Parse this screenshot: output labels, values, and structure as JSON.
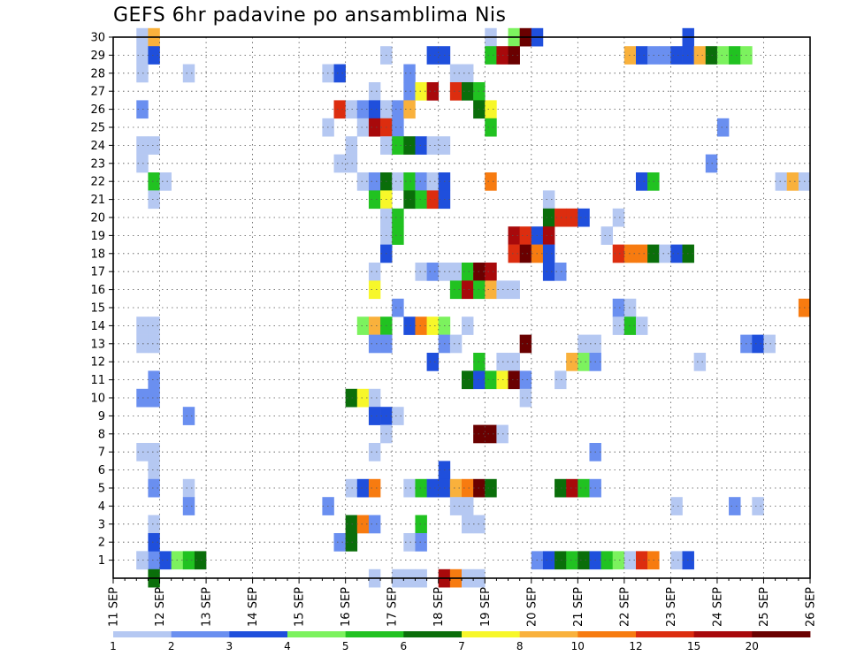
{
  "title": "GEFS 6hr padavine po ansamblima Nis",
  "chart_data": {
    "type": "heatmap",
    "title": "GEFS 6hr padavine po ansamblima Nis",
    "x_axis": {
      "unit": "6-hour step",
      "range": [
        0,
        60
      ],
      "tick_labels": [
        "11 SEP",
        "12 SEP",
        "13 SEP",
        "14 SEP",
        "15 SEP",
        "16 SEP",
        "17 SEP",
        "18 SEP",
        "19 SEP",
        "20 SEP",
        "21 SEP",
        "22 SEP",
        "23 SEP",
        "24 SEP",
        "25 SEP",
        "26 SEP"
      ]
    },
    "y_axis": {
      "range": [
        0,
        30
      ],
      "tick_labels": [
        "1",
        "2",
        "3",
        "4",
        "5",
        "6",
        "7",
        "8",
        "9",
        "10",
        "11",
        "12",
        "13",
        "14",
        "15",
        "16",
        "17",
        "18",
        "19",
        "20",
        "21",
        "22",
        "23",
        "24",
        "25",
        "26",
        "27",
        "28",
        "29",
        "30"
      ]
    },
    "grid": true,
    "legend": {
      "placement": "bottom",
      "labels": [
        "1",
        "2",
        "3",
        "4",
        "5",
        "6",
        "7",
        "8",
        "10",
        "12",
        "15",
        "20"
      ],
      "colors": [
        "#b5c8f2",
        "#6a8ff0",
        "#1f4fdc",
        "#7cf25e",
        "#21c221",
        "#0a6e0a",
        "#f7f72a",
        "#f9b13c",
        "#f77b10",
        "#dc2d0f",
        "#a8090b",
        "#6a0000"
      ]
    },
    "cells": [
      [
        1,
        3,
        1
      ],
      [
        1,
        4,
        2
      ],
      [
        1,
        5,
        3
      ],
      [
        1,
        6,
        4
      ],
      [
        1,
        7,
        5
      ],
      [
        1,
        8,
        6
      ],
      [
        30,
        3,
        1
      ],
      [
        30,
        4,
        8
      ],
      [
        30,
        33,
        1
      ],
      [
        30,
        35,
        4
      ],
      [
        30,
        36,
        12
      ],
      [
        30,
        37,
        3
      ],
      [
        30,
        50,
        3
      ],
      [
        29,
        3,
        1
      ],
      [
        29,
        4,
        3
      ],
      [
        29,
        24,
        1
      ],
      [
        29,
        28,
        3
      ],
      [
        29,
        29,
        3
      ],
      [
        29,
        33,
        5
      ],
      [
        29,
        34,
        11
      ],
      [
        29,
        35,
        12
      ],
      [
        29,
        45,
        8
      ],
      [
        29,
        46,
        3
      ],
      [
        29,
        47,
        2
      ],
      [
        29,
        48,
        2
      ],
      [
        29,
        49,
        3
      ],
      [
        29,
        50,
        3
      ],
      [
        29,
        51,
        8
      ],
      [
        29,
        52,
        6
      ],
      [
        29,
        53,
        4
      ],
      [
        29,
        54,
        5
      ],
      [
        29,
        55,
        4
      ],
      [
        28,
        3,
        1
      ],
      [
        28,
        7,
        1
      ],
      [
        28,
        19,
        1
      ],
      [
        28,
        20,
        3
      ],
      [
        28,
        26,
        2
      ],
      [
        28,
        30,
        1
      ],
      [
        28,
        31,
        1
      ],
      [
        27,
        23,
        1
      ],
      [
        27,
        26,
        2
      ],
      [
        27,
        27,
        7
      ],
      [
        27,
        28,
        11
      ],
      [
        27,
        30,
        10
      ],
      [
        27,
        31,
        6
      ],
      [
        27,
        32,
        5
      ],
      [
        26,
        3,
        2
      ],
      [
        26,
        20,
        10
      ],
      [
        26,
        21,
        1
      ],
      [
        26,
        22,
        2
      ],
      [
        26,
        23,
        3
      ],
      [
        26,
        24,
        1
      ],
      [
        26,
        25,
        2
      ],
      [
        26,
        26,
        8
      ],
      [
        26,
        32,
        6
      ],
      [
        26,
        33,
        7
      ],
      [
        25,
        19,
        1
      ],
      [
        25,
        22,
        1
      ],
      [
        25,
        23,
        11
      ],
      [
        25,
        24,
        10
      ],
      [
        25,
        25,
        2
      ],
      [
        25,
        33,
        5
      ],
      [
        25,
        53,
        2
      ],
      [
        24,
        3,
        1
      ],
      [
        24,
        4,
        1
      ],
      [
        24,
        21,
        1
      ],
      [
        24,
        24,
        1
      ],
      [
        24,
        25,
        5
      ],
      [
        24,
        26,
        6
      ],
      [
        24,
        27,
        3
      ],
      [
        24,
        28,
        1
      ],
      [
        24,
        29,
        1
      ],
      [
        23,
        3,
        1
      ],
      [
        23,
        20,
        1
      ],
      [
        23,
        21,
        1
      ],
      [
        23,
        52,
        2
      ],
      [
        22,
        4,
        5
      ],
      [
        22,
        5,
        1
      ],
      [
        22,
        22,
        1
      ],
      [
        22,
        23,
        2
      ],
      [
        22,
        24,
        6
      ],
      [
        22,
        25,
        1
      ],
      [
        22,
        26,
        5
      ],
      [
        22,
        27,
        2
      ],
      [
        22,
        28,
        1
      ],
      [
        22,
        29,
        3
      ],
      [
        22,
        33,
        9
      ],
      [
        22,
        46,
        3
      ],
      [
        22,
        47,
        5
      ],
      [
        22,
        58,
        1
      ],
      [
        22,
        59,
        8
      ],
      [
        22,
        60,
        1
      ],
      [
        21,
        4,
        1
      ],
      [
        21,
        23,
        5
      ],
      [
        21,
        24,
        7
      ],
      [
        21,
        26,
        6
      ],
      [
        21,
        27,
        5
      ],
      [
        21,
        28,
        10
      ],
      [
        21,
        29,
        3
      ],
      [
        21,
        38,
        1
      ],
      [
        20,
        24,
        1
      ],
      [
        20,
        25,
        5
      ],
      [
        20,
        38,
        6
      ],
      [
        20,
        39,
        10
      ],
      [
        20,
        40,
        10
      ],
      [
        20,
        41,
        3
      ],
      [
        20,
        44,
        1
      ],
      [
        19,
        24,
        1
      ],
      [
        19,
        25,
        5
      ],
      [
        19,
        35,
        11
      ],
      [
        19,
        36,
        10
      ],
      [
        19,
        37,
        3
      ],
      [
        19,
        38,
        11
      ],
      [
        19,
        43,
        1
      ],
      [
        18,
        24,
        3
      ],
      [
        18,
        35,
        10
      ],
      [
        18,
        36,
        12
      ],
      [
        18,
        37,
        9
      ],
      [
        18,
        38,
        3
      ],
      [
        18,
        44,
        10
      ],
      [
        18,
        45,
        9
      ],
      [
        18,
        46,
        9
      ],
      [
        18,
        47,
        6
      ],
      [
        18,
        48,
        1
      ],
      [
        18,
        49,
        3
      ],
      [
        18,
        50,
        6
      ],
      [
        17,
        23,
        1
      ],
      [
        17,
        27,
        1
      ],
      [
        17,
        28,
        2
      ],
      [
        17,
        29,
        1
      ],
      [
        17,
        30,
        1
      ],
      [
        17,
        31,
        5
      ],
      [
        17,
        32,
        12
      ],
      [
        17,
        33,
        11
      ],
      [
        17,
        38,
        3
      ],
      [
        17,
        39,
        2
      ],
      [
        16,
        23,
        7
      ],
      [
        16,
        30,
        5
      ],
      [
        16,
        31,
        11
      ],
      [
        16,
        32,
        5
      ],
      [
        16,
        33,
        8
      ],
      [
        16,
        34,
        1
      ],
      [
        16,
        35,
        1
      ],
      [
        15,
        25,
        2
      ],
      [
        15,
        44,
        2
      ],
      [
        15,
        45,
        1
      ],
      [
        15,
        60,
        9
      ],
      [
        14,
        3,
        1
      ],
      [
        14,
        4,
        1
      ],
      [
        14,
        22,
        4
      ],
      [
        14,
        23,
        8
      ],
      [
        14,
        24,
        5
      ],
      [
        14,
        26,
        3
      ],
      [
        14,
        27,
        9
      ],
      [
        14,
        28,
        7
      ],
      [
        14,
        29,
        4
      ],
      [
        14,
        31,
        1
      ],
      [
        14,
        44,
        1
      ],
      [
        14,
        45,
        5
      ],
      [
        14,
        46,
        1
      ],
      [
        13,
        3,
        1
      ],
      [
        13,
        4,
        1
      ],
      [
        13,
        23,
        2
      ],
      [
        13,
        24,
        2
      ],
      [
        13,
        29,
        2
      ],
      [
        13,
        30,
        1
      ],
      [
        13,
        36,
        12
      ],
      [
        13,
        41,
        1
      ],
      [
        13,
        42,
        1
      ],
      [
        13,
        55,
        2
      ],
      [
        13,
        56,
        3
      ],
      [
        13,
        57,
        1
      ],
      [
        12,
        28,
        3
      ],
      [
        12,
        32,
        5
      ],
      [
        12,
        34,
        1
      ],
      [
        12,
        35,
        1
      ],
      [
        12,
        40,
        8
      ],
      [
        12,
        41,
        4
      ],
      [
        12,
        42,
        2
      ],
      [
        12,
        51,
        1
      ],
      [
        11,
        4,
        2
      ],
      [
        11,
        31,
        6
      ],
      [
        11,
        32,
        3
      ],
      [
        11,
        33,
        5
      ],
      [
        11,
        34,
        7
      ],
      [
        11,
        35,
        12
      ],
      [
        11,
        36,
        2
      ],
      [
        11,
        39,
        1
      ],
      [
        10,
        3,
        2
      ],
      [
        10,
        4,
        2
      ],
      [
        10,
        21,
        6
      ],
      [
        10,
        22,
        7
      ],
      [
        10,
        23,
        1
      ],
      [
        10,
        36,
        1
      ],
      [
        9,
        7,
        2
      ],
      [
        9,
        23,
        3
      ],
      [
        9,
        24,
        3
      ],
      [
        9,
        25,
        1
      ],
      [
        8,
        24,
        1
      ],
      [
        8,
        32,
        12
      ],
      [
        8,
        33,
        12
      ],
      [
        8,
        34,
        1
      ],
      [
        7,
        3,
        1
      ],
      [
        7,
        4,
        1
      ],
      [
        7,
        23,
        1
      ],
      [
        7,
        42,
        2
      ],
      [
        6,
        4,
        1
      ],
      [
        6,
        29,
        3
      ],
      [
        5,
        4,
        2
      ],
      [
        5,
        7,
        1
      ],
      [
        5,
        21,
        1
      ],
      [
        5,
        22,
        3
      ],
      [
        5,
        23,
        9
      ],
      [
        5,
        26,
        1
      ],
      [
        5,
        27,
        5
      ],
      [
        5,
        28,
        3
      ],
      [
        5,
        29,
        3
      ],
      [
        5,
        30,
        8
      ],
      [
        5,
        31,
        9
      ],
      [
        5,
        32,
        12
      ],
      [
        5,
        33,
        6
      ],
      [
        5,
        39,
        6
      ],
      [
        5,
        40,
        11
      ],
      [
        5,
        41,
        5
      ],
      [
        5,
        42,
        2
      ],
      [
        4,
        7,
        2
      ],
      [
        4,
        19,
        2
      ],
      [
        4,
        30,
        1
      ],
      [
        4,
        31,
        1
      ],
      [
        4,
        49,
        1
      ],
      [
        4,
        54,
        2
      ],
      [
        4,
        56,
        1
      ],
      [
        3,
        4,
        1
      ],
      [
        3,
        21,
        6
      ],
      [
        3,
        22,
        9
      ],
      [
        3,
        23,
        2
      ],
      [
        3,
        27,
        5
      ],
      [
        3,
        31,
        1
      ],
      [
        3,
        32,
        1
      ],
      [
        2,
        4,
        3
      ],
      [
        2,
        20,
        2
      ],
      [
        2,
        21,
        6
      ],
      [
        2,
        26,
        1
      ],
      [
        2,
        27,
        2
      ],
      [
        1,
        37,
        2
      ],
      [
        1,
        38,
        3
      ],
      [
        1,
        39,
        6
      ],
      [
        1,
        40,
        5
      ],
      [
        1,
        41,
        6
      ],
      [
        1,
        42,
        3
      ],
      [
        1,
        43,
        5
      ],
      [
        1,
        44,
        4
      ],
      [
        1,
        45,
        1
      ],
      [
        1,
        46,
        10
      ],
      [
        1,
        47,
        9
      ],
      [
        1,
        49,
        1
      ],
      [
        1,
        50,
        3
      ],
      [
        1,
        3,
        1
      ],
      [
        0,
        4,
        6
      ],
      [
        0,
        23,
        1
      ],
      [
        0,
        25,
        1
      ],
      [
        0,
        26,
        1
      ],
      [
        0,
        27,
        1
      ],
      [
        0,
        29,
        11
      ],
      [
        0,
        30,
        9
      ],
      [
        0,
        31,
        1
      ],
      [
        0,
        32,
        1
      ]
    ],
    "cell_note": "row (ensemble member), column (6hr step), color index 1-12"
  }
}
